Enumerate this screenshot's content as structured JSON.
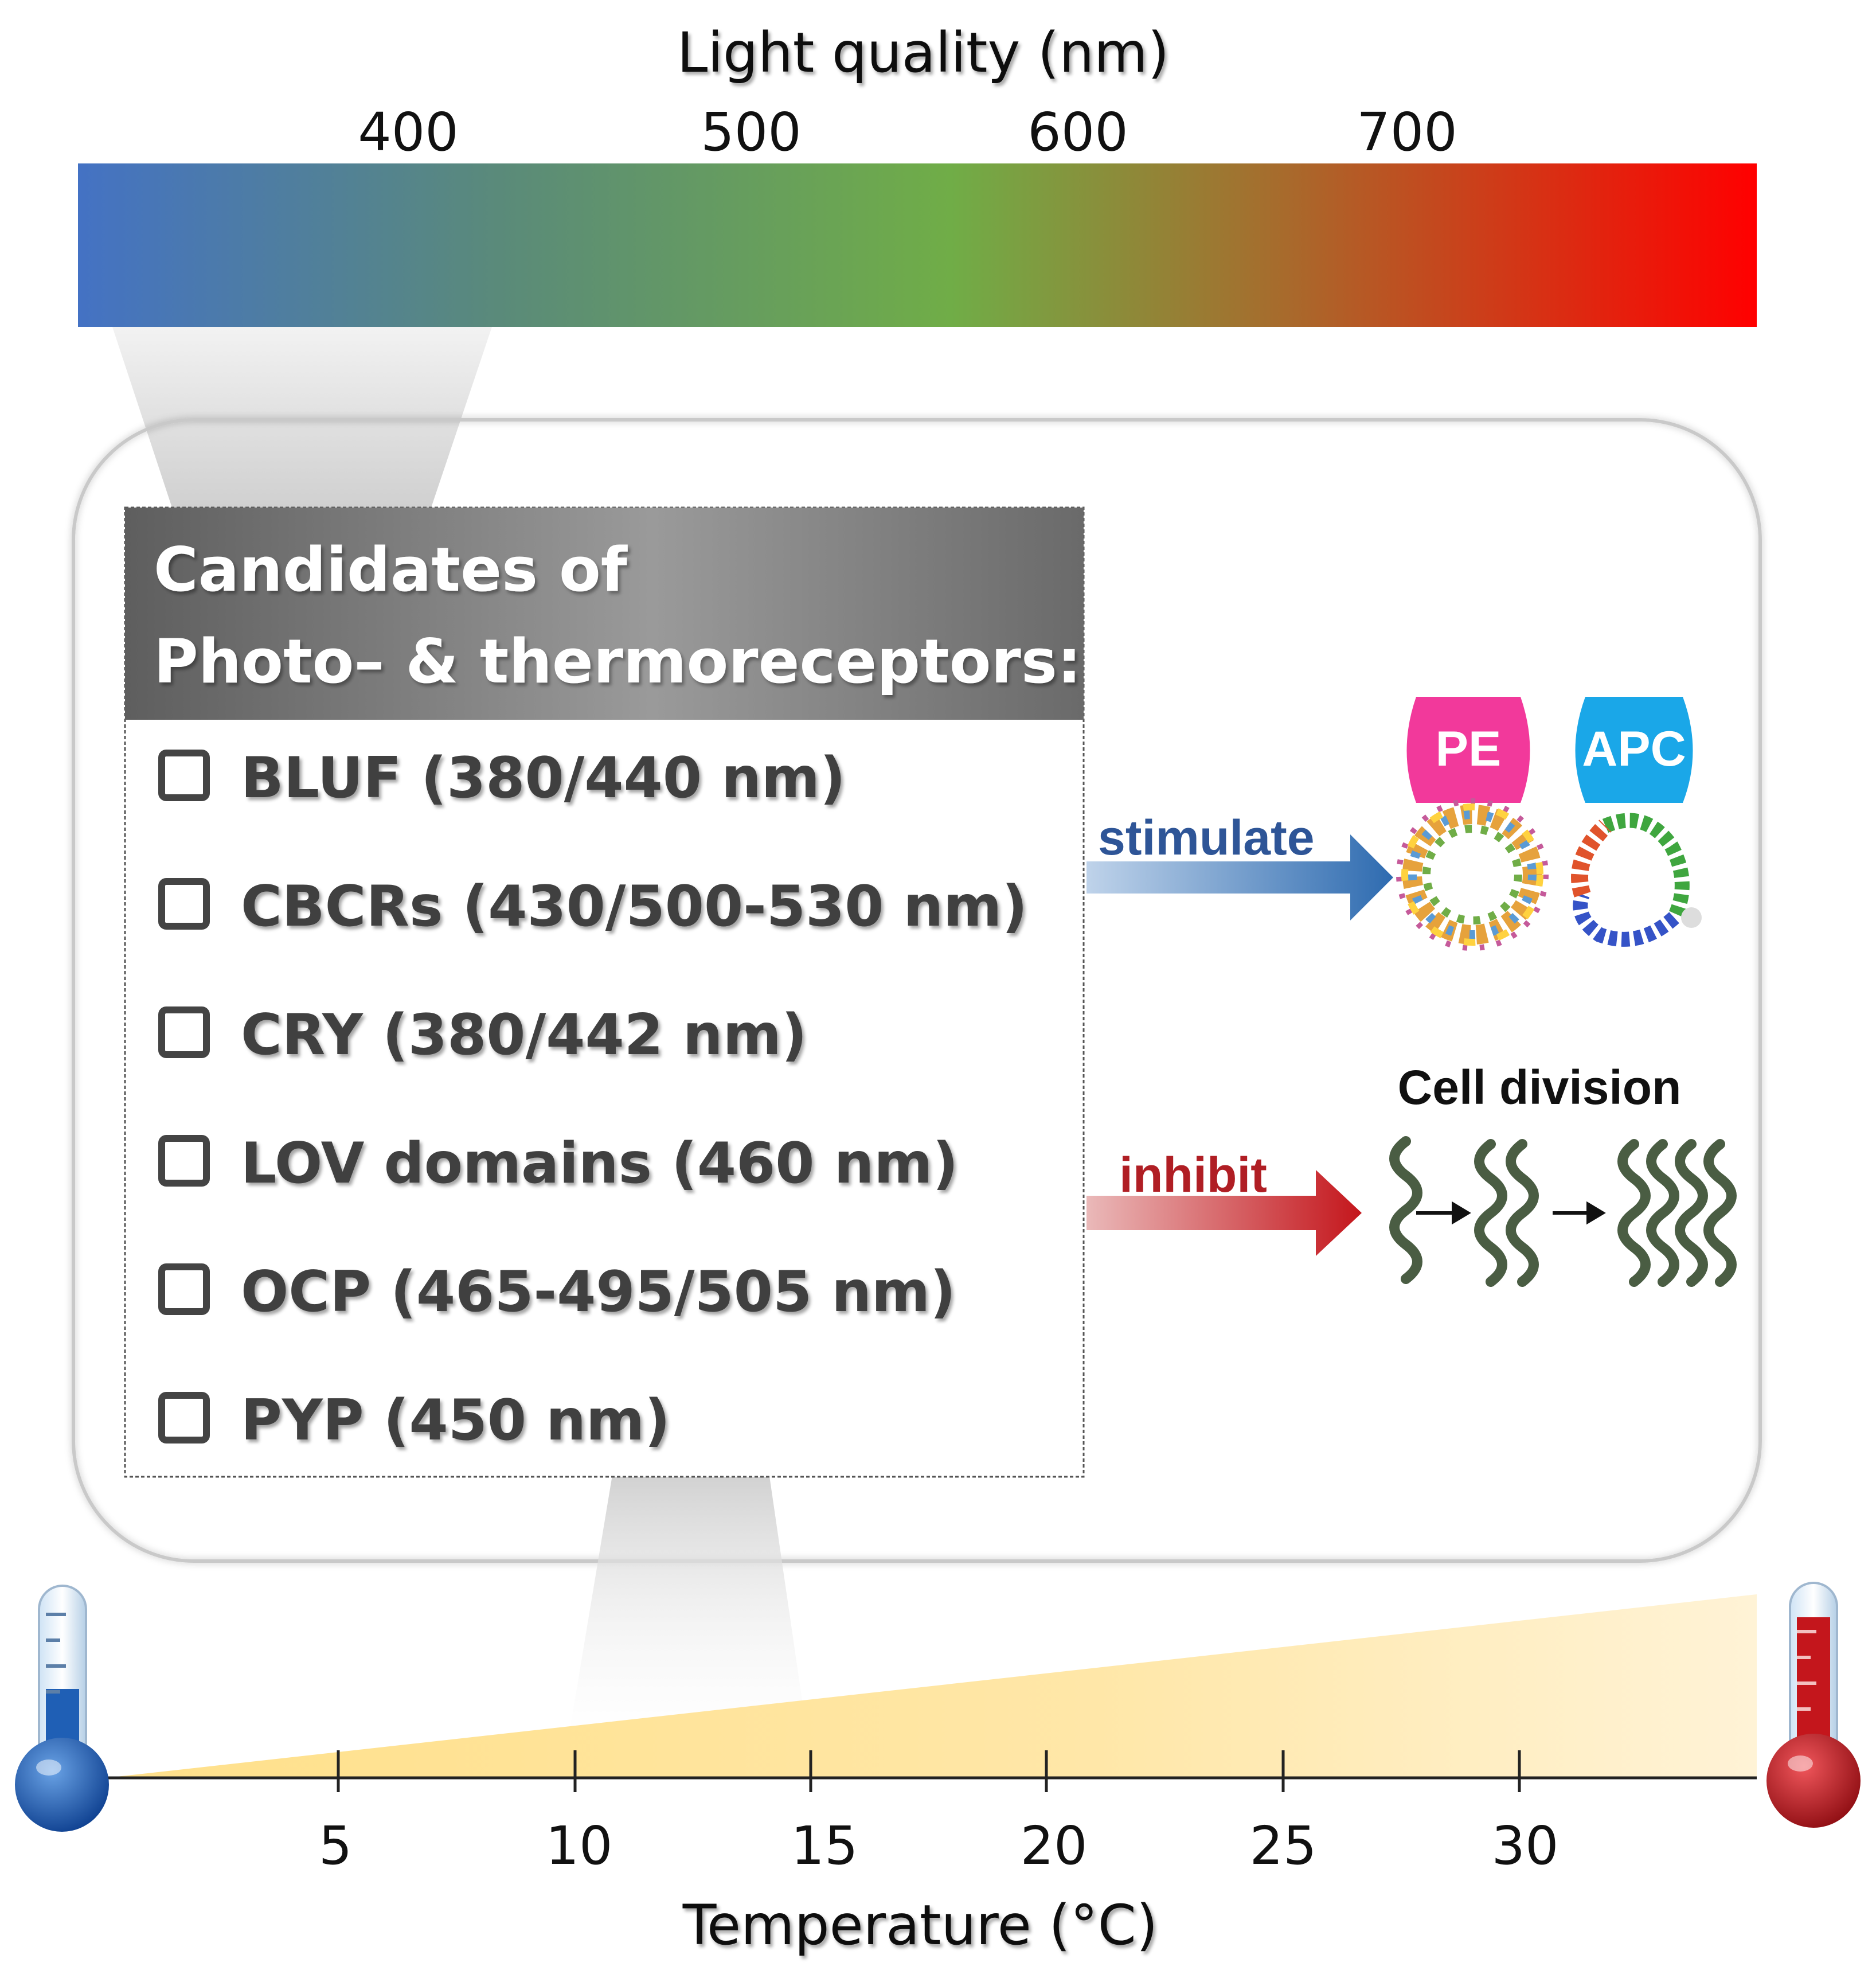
{
  "light_scale": {
    "title": "Light quality (nm)",
    "ticks": [
      "400",
      "500",
      "600",
      "700"
    ],
    "gradient_colors": [
      "#4472c4",
      "#5a8a7a",
      "#70ad47",
      "#a86a2c",
      "#ff0000"
    ]
  },
  "candidates_box": {
    "title_line1": "Candidates of",
    "title_line2": "Photo– & thermoreceptors:",
    "items": [
      {
        "label": "BLUF (380/440 nm)"
      },
      {
        "label": "CBCRs (430/500-530 nm)"
      },
      {
        "label": "CRY (380/442 nm)"
      },
      {
        "label": "LOV domains (460 nm)"
      },
      {
        "label": "OCP (465-495/505 nm)"
      },
      {
        "label": "PYP (450 nm)"
      }
    ]
  },
  "effects": {
    "stimulate": {
      "label": "stimulate",
      "color": "#2e5597"
    },
    "inhibit": {
      "label": "inhibit",
      "color": "#b01e24"
    },
    "pe": {
      "label": "PE",
      "color": "#f2399b"
    },
    "apc": {
      "label": "APC",
      "color": "#1aa7e8"
    },
    "cell_division": {
      "label": "Cell division"
    }
  },
  "temperature_scale": {
    "title": "Temperature (°C)",
    "ticks": [
      "5",
      "10",
      "15",
      "20",
      "25",
      "30"
    ],
    "cold_color": "#1f5fb5",
    "hot_color": "#c4161c",
    "wedge_color": "#ffd966"
  }
}
